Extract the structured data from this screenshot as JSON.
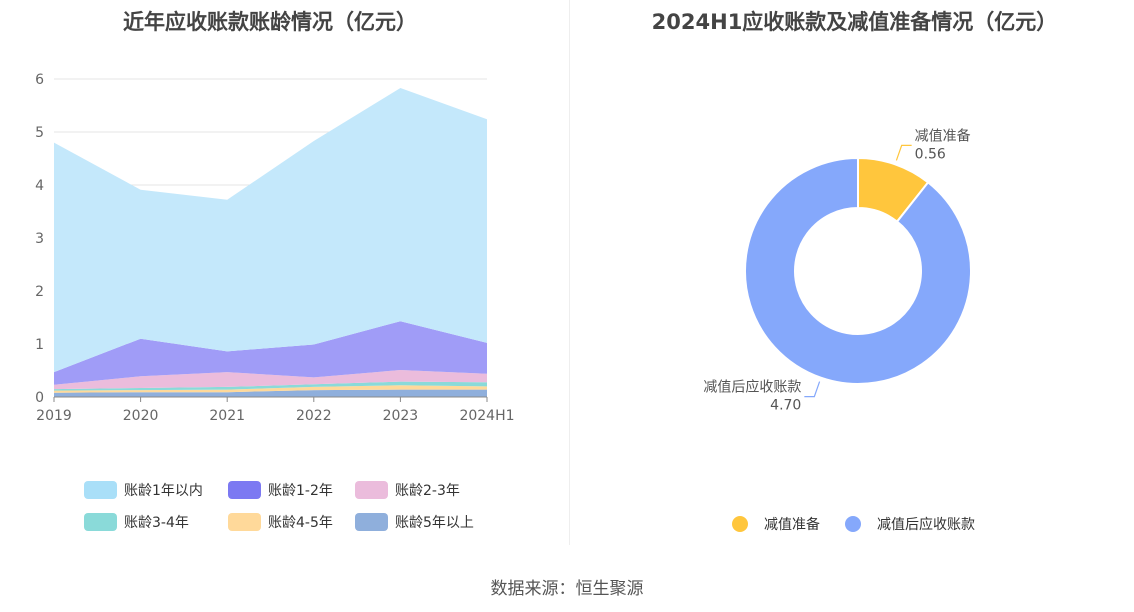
{
  "chart_data": [
    {
      "type": "area",
      "stacked": true,
      "title": "近年应收账款账龄情况（亿元）",
      "categories": [
        "2019",
        "2020",
        "2021",
        "2022",
        "2023",
        "2024H1"
      ],
      "ylim": [
        0,
        6
      ],
      "yticks": [
        "0",
        "1",
        "2",
        "3",
        "4",
        "5",
        "6"
      ],
      "grid": true,
      "legend_position": "bottom",
      "series": [
        {
          "name": "账龄5年以上",
          "color": "#8fafdc",
          "values": [
            0.08,
            0.09,
            0.09,
            0.13,
            0.14,
            0.14
          ]
        },
        {
          "name": "账龄4-5年",
          "color": "#ffd99a",
          "values": [
            0.04,
            0.04,
            0.05,
            0.06,
            0.08,
            0.06
          ]
        },
        {
          "name": "账龄3-4年",
          "color": "#8adad9",
          "values": [
            0.03,
            0.04,
            0.05,
            0.05,
            0.07,
            0.08
          ]
        },
        {
          "name": "账龄2-3年",
          "color": "#ebbcdc",
          "values": [
            0.08,
            0.22,
            0.28,
            0.13,
            0.22,
            0.16
          ]
        },
        {
          "name": "账龄1-2年",
          "color": "#a09cf7",
          "values": [
            0.24,
            0.71,
            0.39,
            0.62,
            0.92,
            0.58
          ]
        },
        {
          "name": "账龄1年以内",
          "color": "#c4e8fb",
          "values": [
            4.33,
            2.81,
            2.86,
            3.84,
            4.4,
            4.22
          ]
        }
      ],
      "legend": [
        {
          "name": "账龄1年以内",
          "color": "#a9dff8"
        },
        {
          "name": "账龄1-2年",
          "color": "#7c79f2"
        },
        {
          "name": "账龄2-3年",
          "color": "#ebbcdc"
        },
        {
          "name": "账龄3-4年",
          "color": "#8adad9"
        },
        {
          "name": "账龄4-5年",
          "color": "#ffd99a"
        },
        {
          "name": "账龄5年以上",
          "color": "#8fafdc"
        }
      ]
    },
    {
      "type": "pie",
      "variant": "donut",
      "title": "2024H1应收账款及减值准备情况（亿元）",
      "legend_position": "bottom",
      "slices": [
        {
          "name": "减值准备",
          "value": 0.56,
          "label": "0.56",
          "color": "#ffc63d"
        },
        {
          "name": "减值后应收账款",
          "value": 4.7,
          "label": "4.70",
          "color": "#85a8fb"
        }
      ]
    }
  ],
  "source": "数据来源：恒生聚源"
}
